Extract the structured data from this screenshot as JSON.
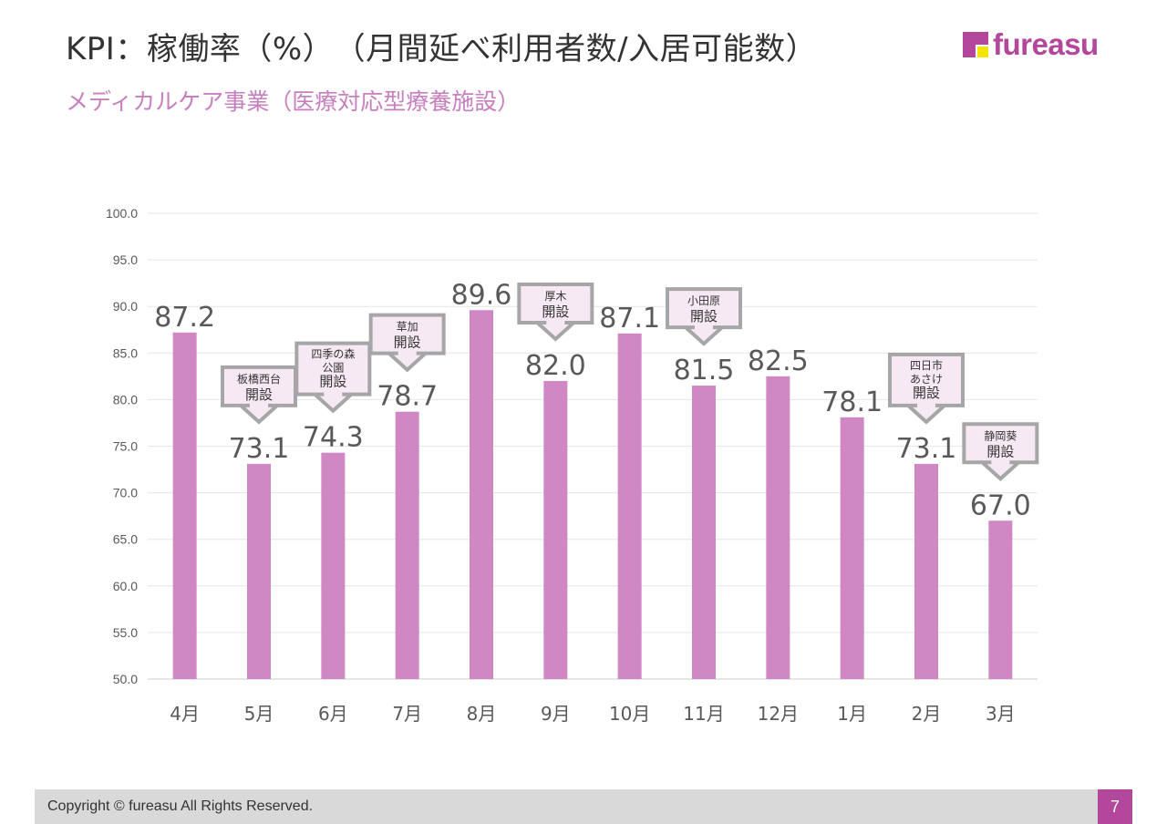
{
  "header": {
    "title": "KPI：稼働率（%）　（月間延べ利用者数/入居可能数）",
    "subtitle": "メディカルケア事業（医療対応型療養施設）",
    "logo_text": "fureasu"
  },
  "chart_data": {
    "type": "bar",
    "categories": [
      "4月",
      "5月",
      "6月",
      "7月",
      "8月",
      "9月",
      "10月",
      "11月",
      "12月",
      "1月",
      "2月",
      "3月"
    ],
    "values": [
      87.2,
      73.1,
      74.3,
      78.7,
      89.6,
      82.0,
      87.1,
      81.5,
      82.5,
      78.1,
      73.1,
      67.0
    ],
    "value_labels": [
      "87.2",
      "73.1",
      "74.3",
      "78.7",
      "89.6",
      "82.0",
      "87.1",
      "81.5",
      "82.5",
      "78.1",
      "73.1",
      "67.0"
    ],
    "ylim": [
      50,
      100
    ],
    "y_ticks": [
      "50.0",
      "55.0",
      "60.0",
      "65.0",
      "70.0",
      "75.0",
      "80.0",
      "85.0",
      "90.0",
      "95.0",
      "100.0"
    ],
    "grid": true,
    "bar_color": "#d088c4",
    "annotations": [
      {
        "category": "5月",
        "lines": [
          "板橋西台"
        ],
        "label": "開設"
      },
      {
        "category": "6月",
        "lines": [
          "四季の森",
          "公園"
        ],
        "label": "開設"
      },
      {
        "category": "7月",
        "lines": [
          "草加"
        ],
        "label": "開設"
      },
      {
        "category": "9月",
        "lines": [
          "厚木"
        ],
        "label": "開設"
      },
      {
        "category": "11月",
        "lines": [
          "小田原"
        ],
        "label": "開設"
      },
      {
        "category": "2月",
        "lines": [
          "四日市",
          "あさけ"
        ],
        "label": "開設"
      },
      {
        "category": "3月",
        "lines": [
          "静岡葵"
        ],
        "label": "開設"
      }
    ]
  },
  "footer": {
    "copyright": "Copyright © fureasu All Rights Reserved.",
    "page_number": "7"
  }
}
